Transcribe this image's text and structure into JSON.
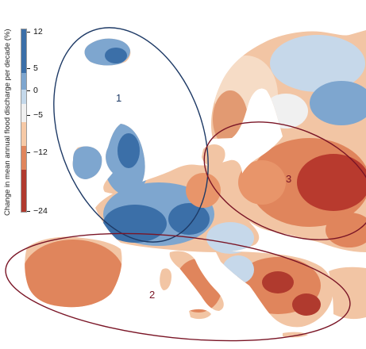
{
  "legend": {
    "title": "Change in mean annual flood discharge per decade (%)",
    "ticks": [
      "12",
      "5",
      "0",
      "−5",
      "−12",
      "−24"
    ],
    "tick_values": [
      12,
      5,
      0,
      -5,
      -12,
      -24
    ],
    "segment_colors": [
      "#3b6fa8",
      "#7ea6cf",
      "#c4d8ea",
      "#f0f0f0",
      "#f6c9a6",
      "#e0855c",
      "#b03a2e"
    ]
  },
  "regions": [
    {
      "label": "1",
      "color": "#1e3a66"
    },
    {
      "label": "2",
      "color": "#7a1526"
    },
    {
      "label": "3",
      "color": "#7a1526"
    }
  ],
  "colors": {
    "sea": "#ffffff",
    "strong_increase": "#3b6fa8",
    "increase": "#7ea6cf",
    "slight_increase": "#c4d8ea",
    "slight_decrease": "#f6c9a6",
    "decrease": "#e0855c",
    "strong_decrease": "#b03a2e"
  }
}
